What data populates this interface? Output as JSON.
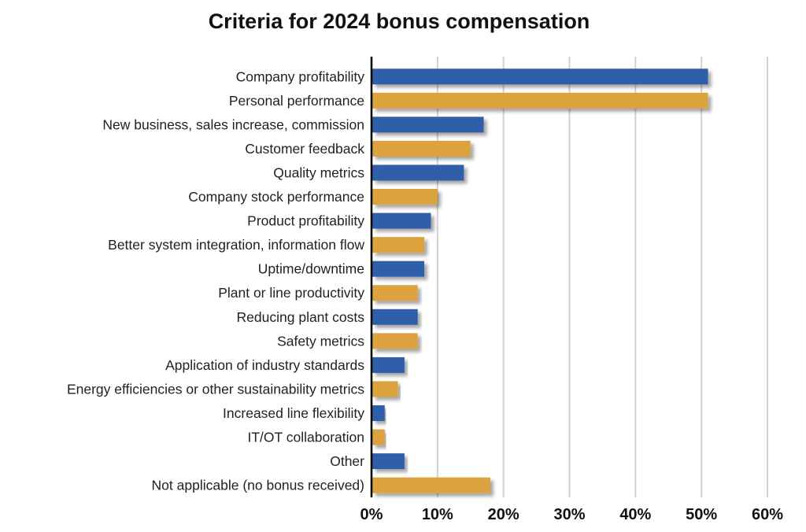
{
  "chart_data": {
    "type": "bar",
    "orientation": "horizontal",
    "title": "Criteria for 2024 bonus compensation",
    "categories": [
      "Company profitability",
      "Personal performance",
      "New business, sales increase, commission",
      "Customer feedback",
      "Quality metrics",
      "Company stock performance",
      "Product profitability",
      "Better system integration, information flow",
      "Uptime/downtime",
      "Plant or line productivity",
      "Reducing plant costs",
      "Safety metrics",
      "Application of industry standards",
      "Energy efficiencies or other sustainability metrics",
      "Increased line flexibility",
      "IT/OT collaboration",
      "Other",
      "Not applicable (no bonus received)"
    ],
    "values": [
      51,
      51,
      17,
      15,
      14,
      10,
      9,
      8,
      8,
      7,
      7,
      7,
      5,
      4,
      2,
      2,
      5,
      18
    ],
    "xlim": [
      0,
      60
    ],
    "x_ticks": [
      "0%",
      "10%",
      "20%",
      "30%",
      "40%",
      "50%",
      "60%"
    ],
    "grid": true,
    "colors": {
      "blue": "#2e5ea8",
      "gold": "#dba23c"
    }
  }
}
